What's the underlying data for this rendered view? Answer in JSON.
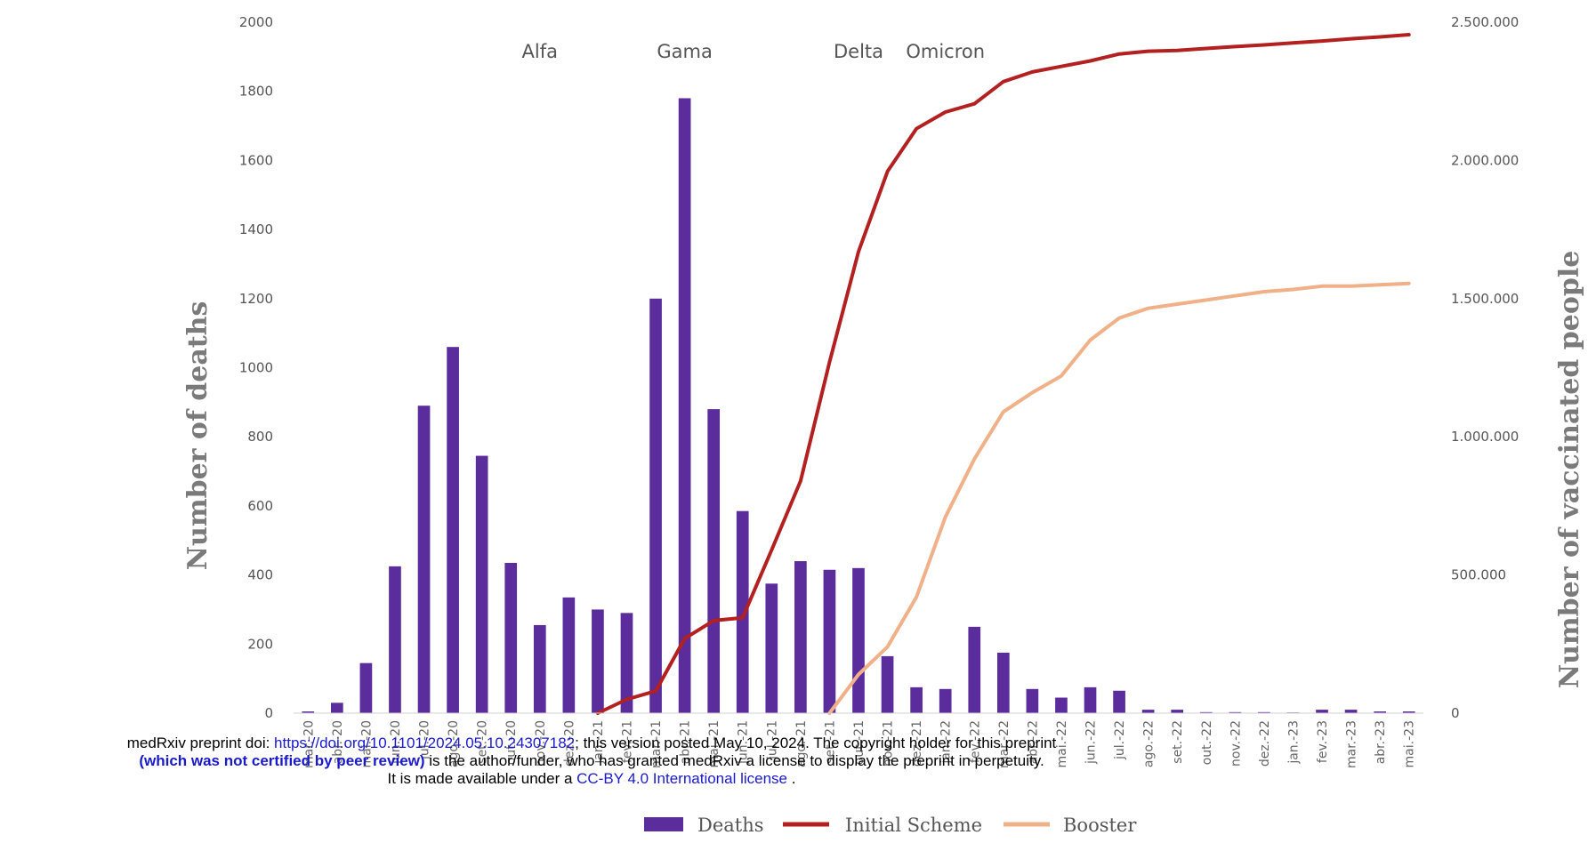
{
  "chart_data": {
    "type": "bar",
    "categories": [
      "mar.-20",
      "abr.-20",
      "mai.-20",
      "jun.-20",
      "jul.-20",
      "ago.-20",
      "set.-20",
      "out.-20",
      "nov.-20",
      "dez.-20",
      "jan.-21",
      "fev.-21",
      "mar.-21",
      "abr.-21",
      "mai.-21",
      "jun.-21",
      "jul.-21",
      "ago.-21",
      "set.-21",
      "out.-21",
      "nov.-21",
      "dez.-21",
      "jan.-22",
      "fev.-22",
      "mar.-22",
      "abr.-22",
      "mai.-22",
      "jun.-22",
      "jul.-22",
      "ago.-22",
      "set.-22",
      "out.-22",
      "nov.-22",
      "dez.-22",
      "jan.-23",
      "fev.-23",
      "mar.-23",
      "abr.-23",
      "mai.-23"
    ],
    "ylabel": "Number of deaths",
    "y2label": "Number of vaccinated people",
    "ylim": [
      0,
      2000
    ],
    "y2lim": [
      0,
      2500000
    ],
    "yticks": [
      "0",
      "200",
      "400",
      "600",
      "800",
      "1000",
      "1200",
      "1400",
      "1600",
      "1800",
      "2000"
    ],
    "y2ticks": [
      "0",
      "500.000",
      "1.000.000",
      "1.500.000",
      "2.000.000",
      "2.500.000"
    ],
    "grid": false,
    "legend_position": "bottom",
    "series": [
      {
        "name": "Deaths",
        "kind": "bar",
        "color": "#5b2c9c",
        "values": [
          5,
          30,
          145,
          425,
          890,
          1060,
          745,
          435,
          255,
          335,
          300,
          290,
          1200,
          1780,
          880,
          585,
          375,
          440,
          415,
          420,
          165,
          75,
          70,
          250,
          175,
          70,
          45,
          75,
          65,
          10,
          10,
          3,
          3,
          3,
          2,
          10,
          10,
          5,
          5
        ]
      },
      {
        "name": "Initial Scheme",
        "kind": "line",
        "axis": "right",
        "color": "#b22020",
        "values": [
          null,
          null,
          null,
          null,
          null,
          null,
          null,
          null,
          null,
          null,
          0,
          50000,
          80000,
          270000,
          335000,
          345000,
          590000,
          840000,
          1270000,
          1670000,
          1960000,
          2115000,
          2175000,
          2205000,
          2285000,
          2320000,
          2340000,
          2360000,
          2385000,
          2395000,
          2398000,
          2405000,
          2412000,
          2418000,
          2425000,
          2432000,
          2440000,
          2447000,
          2455000
        ]
      },
      {
        "name": "Booster",
        "kind": "line",
        "axis": "right",
        "color": "#f0b088",
        "values": [
          null,
          null,
          null,
          null,
          null,
          null,
          null,
          null,
          null,
          null,
          null,
          null,
          null,
          null,
          null,
          null,
          null,
          null,
          0,
          140000,
          240000,
          420000,
          710000,
          920000,
          1090000,
          1160000,
          1220000,
          1350000,
          1430000,
          1465000,
          1480000,
          1495000,
          1510000,
          1525000,
          1533000,
          1545000,
          1545000,
          1550000,
          1555000
        ]
      }
    ],
    "annotations": [
      {
        "text": "Alfa",
        "at": "nov.-20"
      },
      {
        "text": "Gama",
        "at": "abr.-21"
      },
      {
        "text": "Delta",
        "at": "out.-21"
      },
      {
        "text": "Omicron",
        "at": "jan.-22"
      }
    ]
  },
  "notice": {
    "line1_prefix": "medRxiv preprint doi: ",
    "doi_link": "https://doi.org/10.1101/2024.05.10.24307182",
    "line1_suffix": "; this version posted May 10, 2024. The copyright holder for this preprint",
    "line2_bold": "(which was not certified by peer review)",
    "line2_suffix": " is the author/funder, who has granted medRxiv a license to display the preprint in perpetuity.",
    "line3_prefix": "It is made available under a ",
    "license_link": "CC-BY 4.0 International license",
    "line3_suffix": " ."
  }
}
